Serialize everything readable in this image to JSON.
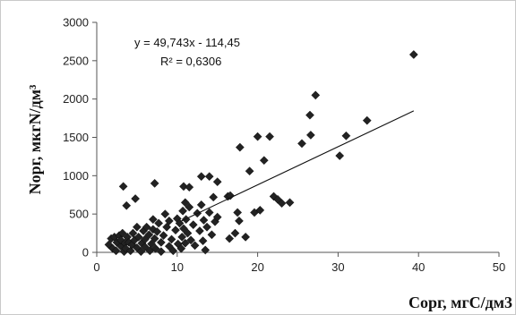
{
  "chart_data": {
    "type": "scatter",
    "title": "",
    "xlabel": "Сорг, мгС/дм3",
    "ylabel": "Nорг,  мкгN/дм³",
    "xlim": [
      0,
      50
    ],
    "ylim": [
      0,
      3000
    ],
    "x_ticks": [
      "0",
      "10",
      "20",
      "30",
      "40",
      "50"
    ],
    "y_ticks": [
      "0",
      "500",
      "1000",
      "1500",
      "2000",
      "2500",
      "3000"
    ],
    "grid": false,
    "legend": "none",
    "marker_color": "#222222",
    "trendline": {
      "slope": 49.743,
      "intercept": -114.45,
      "x_range": [
        10.4,
        39.4
      ]
    },
    "annotations": {
      "equation": "y = 49,743x - 114,45",
      "r2": "R² = 0,6306"
    },
    "series": [
      {
        "points": [
          [
            1.5,
            100
          ],
          [
            1.8,
            180
          ],
          [
            2,
            50
          ],
          [
            2.2,
            200
          ],
          [
            2.4,
            20
          ],
          [
            2.5,
            130
          ],
          [
            2.8,
            220
          ],
          [
            3,
            80
          ],
          [
            3,
            160
          ],
          [
            3.2,
            250
          ],
          [
            3.4,
            10
          ],
          [
            3.5,
            120
          ],
          [
            3.6,
            50
          ],
          [
            3.8,
            200
          ],
          [
            4,
            130
          ],
          [
            4.2,
            20
          ],
          [
            4.4,
            100
          ],
          [
            4.5,
            250
          ],
          [
            4.7,
            160
          ],
          [
            5,
            60
          ],
          [
            5,
            330
          ],
          [
            5.2,
            200
          ],
          [
            5.5,
            10
          ],
          [
            5.6,
            120
          ],
          [
            5.8,
            280
          ],
          [
            6,
            70
          ],
          [
            6,
            170
          ],
          [
            6.2,
            330
          ],
          [
            6.5,
            230
          ],
          [
            6.6,
            20
          ],
          [
            6.8,
            110
          ],
          [
            7,
            300
          ],
          [
            7,
            430
          ],
          [
            7.2,
            180
          ],
          [
            7.3,
            50
          ],
          [
            7.5,
            270
          ],
          [
            7.7,
            380
          ],
          [
            8,
            130
          ],
          [
            8,
            10
          ],
          [
            8.3,
            220
          ],
          [
            8.5,
            500
          ],
          [
            8.7,
            330
          ],
          [
            9,
            80
          ],
          [
            9,
            410
          ],
          [
            9.3,
            170
          ],
          [
            9.5,
            20
          ],
          [
            9.8,
            290
          ],
          [
            10,
            440
          ],
          [
            10.1,
            110
          ],
          [
            10.3,
            380
          ],
          [
            10.5,
            50
          ],
          [
            10.6,
            200
          ],
          [
            10.7,
            540
          ],
          [
            10.8,
            310
          ],
          [
            11,
            120
          ],
          [
            11,
            650
          ],
          [
            11.1,
            430
          ],
          [
            11.3,
            250
          ],
          [
            11.5,
            590
          ],
          [
            11.7,
            160
          ],
          [
            12,
            360
          ],
          [
            12.2,
            90
          ],
          [
            12.5,
            510
          ],
          [
            12.8,
            280
          ],
          [
            13,
            620
          ],
          [
            13.2,
            150
          ],
          [
            13.3,
            420
          ],
          [
            13.5,
            30
          ],
          [
            13.7,
            330
          ],
          [
            14,
            520
          ],
          [
            14.3,
            230
          ],
          [
            14.5,
            720
          ],
          [
            14.7,
            400
          ],
          [
            15,
            460
          ],
          [
            15,
            920
          ],
          [
            3.3,
            860
          ],
          [
            3.7,
            610
          ],
          [
            4.8,
            700
          ],
          [
            7.2,
            900
          ],
          [
            10.8,
            860
          ],
          [
            11.5,
            850
          ],
          [
            13,
            990
          ],
          [
            14,
            990
          ],
          [
            16.3,
            730
          ],
          [
            16.6,
            740
          ],
          [
            16.5,
            180
          ],
          [
            17.2,
            250
          ],
          [
            17.5,
            520
          ],
          [
            17.7,
            410
          ],
          [
            17.8,
            1370
          ],
          [
            18.5,
            200
          ],
          [
            19,
            1060
          ],
          [
            19.6,
            520
          ],
          [
            20,
            1510
          ],
          [
            20.3,
            550
          ],
          [
            20.8,
            1200
          ],
          [
            21.5,
            1510
          ],
          [
            22,
            730
          ],
          [
            22.5,
            690
          ],
          [
            23,
            640
          ],
          [
            24,
            650
          ],
          [
            25.5,
            1420
          ],
          [
            26.5,
            1790
          ],
          [
            26.6,
            1530
          ],
          [
            27.2,
            2050
          ],
          [
            30.2,
            1260
          ],
          [
            31,
            1520
          ],
          [
            33.6,
            1720
          ],
          [
            39.4,
            2580
          ]
        ]
      }
    ]
  }
}
